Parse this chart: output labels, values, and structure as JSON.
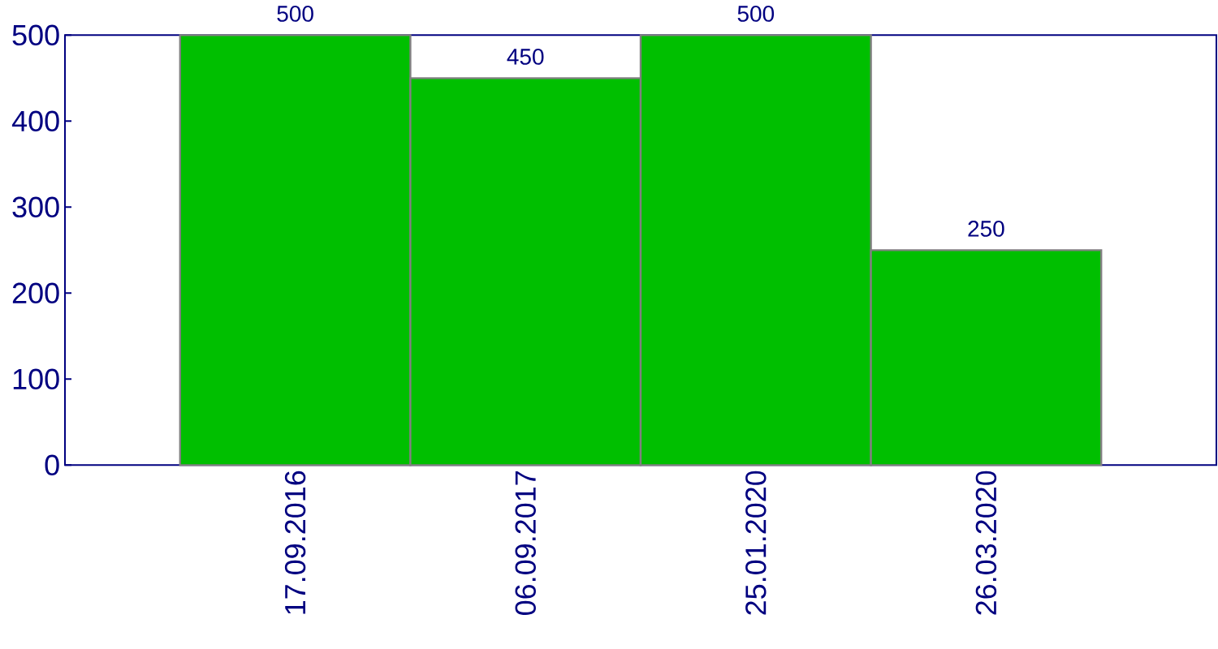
{
  "chart_data": {
    "type": "bar",
    "categories": [
      "17.09.2016",
      "06.09.2017",
      "25.01.2020",
      "26.03.2020"
    ],
    "values": [
      500,
      450,
      500,
      250
    ],
    "color": "#00bf00",
    "ylim": [
      0,
      500
    ],
    "yticks": [
      0,
      100,
      200,
      300,
      400,
      500
    ],
    "data_labels": true
  }
}
